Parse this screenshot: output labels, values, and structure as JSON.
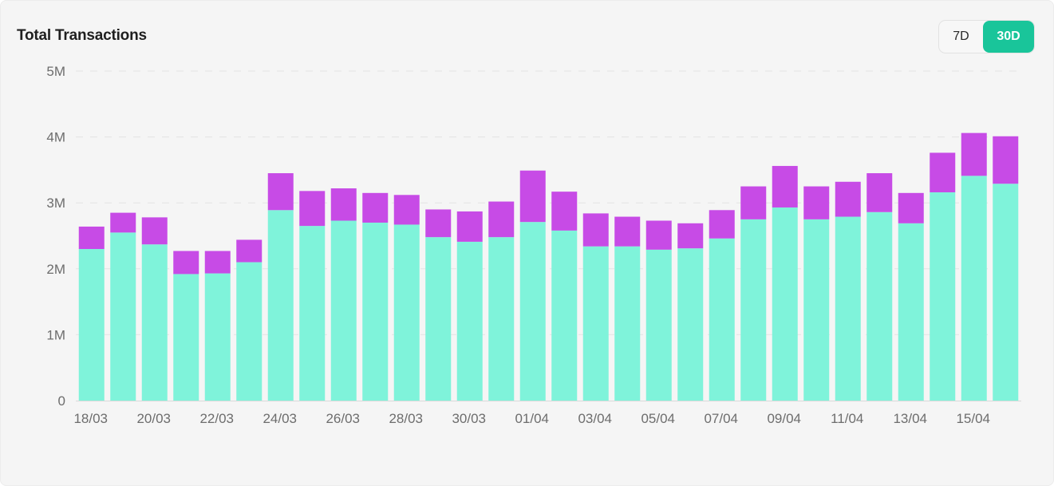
{
  "header": {
    "title": "Total Transactions",
    "range_options": [
      "7D",
      "30D"
    ],
    "selected_range": "30D"
  },
  "colors": {
    "base_series": "#7ff3da",
    "top_series": "#c74be6",
    "active_toggle": "#19c59a",
    "grid": "#e3e3e3"
  },
  "chart_data": {
    "type": "bar",
    "stacked": true,
    "title": "Total Transactions",
    "ylim": [
      0,
      5000000
    ],
    "yticks": [
      0,
      1000000,
      2000000,
      3000000,
      4000000,
      5000000
    ],
    "ytick_labels": [
      "0",
      "1M",
      "2M",
      "3M",
      "4M",
      "5M"
    ],
    "grid": "horizontal dashed",
    "legend": "none",
    "categories": [
      "18/03",
      "19/03",
      "20/03",
      "21/03",
      "22/03",
      "23/03",
      "24/03",
      "25/03",
      "26/03",
      "27/03",
      "28/03",
      "29/03",
      "30/03",
      "31/03",
      "01/04",
      "02/04",
      "03/04",
      "04/04",
      "05/04",
      "06/04",
      "07/04",
      "08/04",
      "09/04",
      "10/04",
      "11/04",
      "12/04",
      "13/04",
      "14/04",
      "15/04",
      "16/04"
    ],
    "xtick_labels": [
      "18/03",
      "20/03",
      "22/03",
      "24/03",
      "26/03",
      "28/03",
      "30/03",
      "01/04",
      "03/04",
      "05/04",
      "07/04",
      "09/04",
      "11/04",
      "13/04",
      "15/04"
    ],
    "series": [
      {
        "values": [
          2300000,
          2550000,
          2370000,
          1920000,
          1930000,
          2100000,
          2890000,
          2650000,
          2730000,
          2700000,
          2670000,
          2480000,
          2410000,
          2480000,
          2710000,
          2580000,
          2340000,
          2340000,
          2290000,
          2310000,
          2460000,
          2750000,
          2930000,
          2750000,
          2790000,
          2860000,
          2690000,
          3160000,
          3410000,
          3290000
        ]
      },
      {
        "values": [
          340000,
          300000,
          410000,
          350000,
          340000,
          340000,
          560000,
          530000,
          490000,
          450000,
          450000,
          420000,
          460000,
          540000,
          780000,
          590000,
          500000,
          450000,
          440000,
          380000,
          430000,
          500000,
          630000,
          500000,
          530000,
          590000,
          460000,
          600000,
          650000,
          720000
        ]
      }
    ]
  }
}
